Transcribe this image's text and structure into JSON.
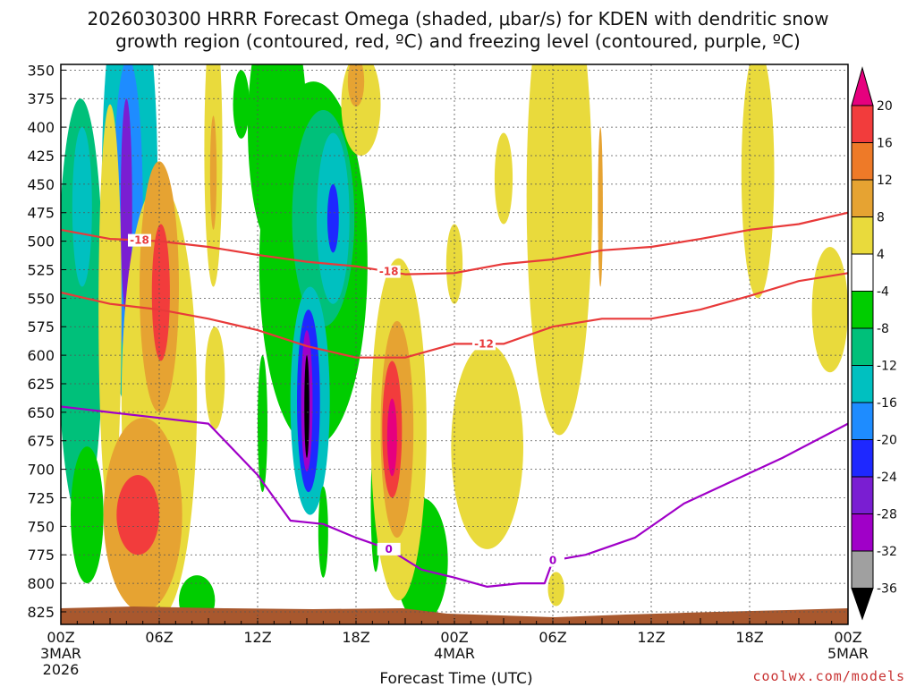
{
  "chart_data": {
    "type": "heatmap",
    "title_line1": "2026030300 HRRR Forecast Omega (shaded, μbar/s) for KDEN with dendritic snow",
    "title_line2": "growth region (contoured, red, ºC) and freezing level (contoured, purple, ºC)",
    "xlabel": "Forecast Time (UTC)",
    "ylabel": "",
    "credit": "coolwx.com/models",
    "x_range_hours": [
      0,
      48
    ],
    "y_range_hpa": [
      350,
      835
    ],
    "y_ticks": [
      "350",
      "375",
      "400",
      "425",
      "450",
      "475",
      "500",
      "525",
      "550",
      "575",
      "600",
      "625",
      "650",
      "675",
      "700",
      "725",
      "750",
      "775",
      "800",
      "825"
    ],
    "x_ticks": [
      {
        "hour": 0,
        "label": "00Z",
        "sub1": "3MAR",
        "sub2": "2026"
      },
      {
        "hour": 6,
        "label": "06Z",
        "sub1": "",
        "sub2": ""
      },
      {
        "hour": 12,
        "label": "12Z",
        "sub1": "",
        "sub2": ""
      },
      {
        "hour": 18,
        "label": "18Z",
        "sub1": "",
        "sub2": ""
      },
      {
        "hour": 24,
        "label": "00Z",
        "sub1": "4MAR",
        "sub2": ""
      },
      {
        "hour": 30,
        "label": "06Z",
        "sub1": "",
        "sub2": ""
      },
      {
        "hour": 36,
        "label": "12Z",
        "sub1": "",
        "sub2": ""
      },
      {
        "hour": 42,
        "label": "18Z",
        "sub1": "",
        "sub2": ""
      },
      {
        "hour": 48,
        "label": "00Z",
        "sub1": "5MAR",
        "sub2": ""
      }
    ],
    "colorbar": {
      "labels": [
        "20",
        "16",
        "12",
        "8",
        "4",
        "-4",
        "-8",
        "-12",
        "-16",
        "-20",
        "-24",
        "-28",
        "-32",
        "-36"
      ],
      "bins": [
        {
          "min": 20,
          "max": 24,
          "color": "#e6007e"
        },
        {
          "min": 16,
          "max": 20,
          "color": "#f23c3c"
        },
        {
          "min": 12,
          "max": 16,
          "color": "#ee7a28"
        },
        {
          "min": 8,
          "max": 12,
          "color": "#e6a332"
        },
        {
          "min": 4,
          "max": 8,
          "color": "#e9da3c"
        },
        {
          "min": -4,
          "max": 4,
          "color": "#ffffff"
        },
        {
          "min": -8,
          "max": -4,
          "color": "#00cd00"
        },
        {
          "min": -12,
          "max": -8,
          "color": "#00c07a"
        },
        {
          "min": -16,
          "max": -12,
          "color": "#00c0c0"
        },
        {
          "min": -20,
          "max": -16,
          "color": "#1e8cff"
        },
        {
          "min": -24,
          "max": -20,
          "color": "#1e28ff"
        },
        {
          "min": -28,
          "max": -24,
          "color": "#7a1ed2"
        },
        {
          "min": -32,
          "max": -28,
          "color": "#a000c8"
        },
        {
          "min": -36,
          "max": -32,
          "color": "#a0a0a0"
        },
        {
          "min": -40,
          "max": -36,
          "color": "#000000"
        }
      ]
    },
    "omega_features": [
      {
        "hour": 1.2,
        "hpa": 560,
        "dh": 1.4,
        "dp": 185,
        "value": -9
      },
      {
        "hour": 1.3,
        "hpa": 470,
        "dh": 0.6,
        "dp": 70,
        "value": -14
      },
      {
        "hour": 1.6,
        "hpa": 740,
        "dh": 1.0,
        "dp": 60,
        "value": -6
      },
      {
        "hour": 4.2,
        "hpa": 450,
        "dh": 1.7,
        "dp": 195,
        "value": -14
      },
      {
        "hour": 4.1,
        "hpa": 470,
        "dh": 0.9,
        "dp": 130,
        "value": -19
      },
      {
        "hour": 4.0,
        "hpa": 470,
        "dh": 0.35,
        "dp": 95,
        "value": -25
      },
      {
        "hour": 3.0,
        "hpa": 560,
        "dh": 0.7,
        "dp": 180,
        "value": 6
      },
      {
        "hour": 6.0,
        "hpa": 640,
        "dh": 2.3,
        "dp": 190,
        "value": 5
      },
      {
        "hour": 6.0,
        "hpa": 540,
        "dh": 1.2,
        "dp": 110,
        "value": 10
      },
      {
        "hour": 6.1,
        "hpa": 545,
        "dh": 0.55,
        "dp": 60,
        "value": 19
      },
      {
        "hour": 5.0,
        "hpa": 740,
        "dh": 2.4,
        "dp": 85,
        "value": 9
      },
      {
        "hour": 4.7,
        "hpa": 740,
        "dh": 1.3,
        "dp": 35,
        "value": 18
      },
      {
        "hour": 9.3,
        "hpa": 420,
        "dh": 0.55,
        "dp": 120,
        "value": 5
      },
      {
        "hour": 9.3,
        "hpa": 440,
        "dh": 0.2,
        "dp": 50,
        "value": 11
      },
      {
        "hour": 9.4,
        "hpa": 620,
        "dh": 0.6,
        "dp": 45,
        "value": 5
      },
      {
        "hour": 8.3,
        "hpa": 815,
        "dh": 1.1,
        "dp": 22,
        "value": -6
      },
      {
        "hour": 13.2,
        "hpa": 400,
        "dh": 1.8,
        "dp": 110,
        "value": -6
      },
      {
        "hour": 11.0,
        "hpa": 380,
        "dh": 0.5,
        "dp": 30,
        "value": -6
      },
      {
        "hour": 15.4,
        "hpa": 520,
        "dh": 3.3,
        "dp": 160,
        "value": -7
      },
      {
        "hour": 16.0,
        "hpa": 480,
        "dh": 1.9,
        "dp": 95,
        "value": -11
      },
      {
        "hour": 16.6,
        "hpa": 480,
        "dh": 1.0,
        "dp": 75,
        "value": -16
      },
      {
        "hour": 16.6,
        "hpa": 480,
        "dh": 0.35,
        "dp": 30,
        "value": -21
      },
      {
        "hour": 15.2,
        "hpa": 640,
        "dh": 1.2,
        "dp": 100,
        "value": -14
      },
      {
        "hour": 15.1,
        "hpa": 640,
        "dh": 0.7,
        "dp": 80,
        "value": -21
      },
      {
        "hour": 15.0,
        "hpa": 640,
        "dh": 0.35,
        "dp": 62,
        "value": -30
      },
      {
        "hour": 15.0,
        "hpa": 645,
        "dh": 0.15,
        "dp": 45,
        "value": -38
      },
      {
        "hour": 12.3,
        "hpa": 660,
        "dh": 0.3,
        "dp": 60,
        "value": -6
      },
      {
        "hour": 16.0,
        "hpa": 755,
        "dh": 0.3,
        "dp": 40,
        "value": -6
      },
      {
        "hour": 19.2,
        "hpa": 730,
        "dh": 0.3,
        "dp": 60,
        "value": -6
      },
      {
        "hour": 22.0,
        "hpa": 780,
        "dh": 1.6,
        "dp": 55,
        "value": -6
      },
      {
        "hour": 18.3,
        "hpa": 380,
        "dh": 1.2,
        "dp": 45,
        "value": 5
      },
      {
        "hour": 18.0,
        "hpa": 360,
        "dh": 0.5,
        "dp": 22,
        "value": 11
      },
      {
        "hour": 20.6,
        "hpa": 665,
        "dh": 1.7,
        "dp": 150,
        "value": 6
      },
      {
        "hour": 20.5,
        "hpa": 665,
        "dh": 1.0,
        "dp": 95,
        "value": 11
      },
      {
        "hour": 20.2,
        "hpa": 665,
        "dh": 0.6,
        "dp": 60,
        "value": 18
      },
      {
        "hour": 20.2,
        "hpa": 672,
        "dh": 0.3,
        "dp": 34,
        "value": 22
      },
      {
        "hour": 24.0,
        "hpa": 520,
        "dh": 0.5,
        "dp": 35,
        "value": 5
      },
      {
        "hour": 26.0,
        "hpa": 680,
        "dh": 2.2,
        "dp": 90,
        "value": 5
      },
      {
        "hour": 27.0,
        "hpa": 445,
        "dh": 0.55,
        "dp": 40,
        "value": 5
      },
      {
        "hour": 30.4,
        "hpa": 460,
        "dh": 2.0,
        "dp": 210,
        "value": 5
      },
      {
        "hour": 30.2,
        "hpa": 805,
        "dh": 0.5,
        "dp": 15,
        "value": 5
      },
      {
        "hour": 32.9,
        "hpa": 470,
        "dh": 0.15,
        "dp": 70,
        "value": 10
      },
      {
        "hour": 42.5,
        "hpa": 440,
        "dh": 1.0,
        "dp": 110,
        "value": 5
      },
      {
        "hour": 46.9,
        "hpa": 560,
        "dh": 1.1,
        "dp": 55,
        "value": 5
      }
    ],
    "contours": [
      {
        "label": "-18",
        "color": "#e83a3a",
        "hours": [
          0,
          3,
          6,
          9,
          12,
          15,
          18,
          21,
          24,
          27,
          30,
          33,
          36,
          39,
          42,
          45,
          48
        ],
        "hpa": [
          490,
          498,
          500,
          505,
          512,
          518,
          522,
          529,
          528,
          520,
          516,
          508,
          505,
          498,
          490,
          485,
          475
        ]
      },
      {
        "label": "-12",
        "color": "#e83a3a",
        "hours": [
          0,
          3,
          6,
          9,
          12,
          15,
          18,
          21,
          24,
          27,
          30,
          33,
          36,
          39,
          42,
          45,
          48
        ],
        "hpa": [
          545,
          555,
          560,
          568,
          578,
          592,
          602,
          602,
          590,
          590,
          575,
          568,
          568,
          560,
          548,
          535,
          528
        ]
      },
      {
        "label": "0",
        "color": "#a000c8",
        "hours": [
          0,
          3,
          6,
          9,
          12,
          14,
          16,
          18,
          20,
          22,
          24,
          26,
          28,
          29.5,
          30,
          32,
          35,
          38,
          41,
          44,
          48
        ],
        "hpa": [
          645,
          650,
          655,
          660,
          705,
          745,
          748,
          760,
          770,
          788,
          795,
          803,
          800,
          800,
          780,
          775,
          760,
          730,
          710,
          690,
          660
        ]
      }
    ]
  }
}
